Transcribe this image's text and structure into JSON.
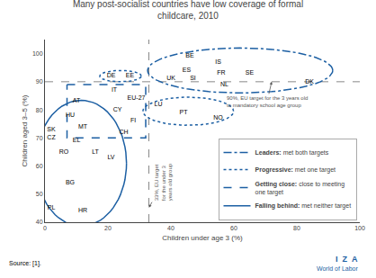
{
  "chart_data": {
    "type": "scatter",
    "title": "Many post-socialist countries have low coverage of formal\nchildcare, 2010",
    "xlabel": "Children under age 3 (%)",
    "ylabel": "Children aged 3–5 (%)",
    "xlim": [
      0,
      100
    ],
    "ylim": [
      40,
      105
    ],
    "xticks": [
      0,
      20,
      40,
      60,
      80,
      100
    ],
    "yticks": [
      40,
      50,
      60,
      70,
      80,
      90,
      100
    ],
    "grid": false,
    "legend": "lower right",
    "color": "#1c5fa3",
    "hline": {
      "value": 90,
      "label": "90%, EU target for the 3 years old\nto mandatory school age group"
    },
    "vline": {
      "value": 33,
      "label": "33%, EU target\nfor the under 3\nyears old group"
    },
    "source": "Source: [1].",
    "annotations": [
      "I  Z  A",
      "World of Labor"
    ],
    "series": [
      {
        "name": "Leaders: met both targets",
        "line_style": "dashdot",
        "labels": [
          "BE",
          "IS",
          "ES",
          "FR",
          "UK",
          "SI",
          "SE",
          "NL",
          "DK"
        ],
        "x": [
          46,
          55,
          45,
          56,
          40,
          47,
          65,
          57,
          84
        ],
        "y": [
          99,
          97,
          94,
          93,
          91,
          91,
          93,
          89,
          90
        ]
      },
      {
        "name": "Progressive: met one target",
        "line_style": "dotted",
        "labels": [
          "DE",
          "EE"
        ],
        "x": [
          21,
          27
        ],
        "y": [
          92,
          92
        ]
      },
      {
        "name": "Getting close: close to meeting\none target",
        "line_style": "dashed",
        "labels": [
          "IT",
          "EU-27",
          "CY",
          "FI",
          "CH",
          "AT"
        ],
        "x": [
          22,
          29,
          23,
          28,
          25,
          10
        ],
        "y": [
          87,
          84,
          80,
          76,
          72,
          83
        ]
      },
      {
        "name": "Falling behind: met neither target",
        "line_style": "solid",
        "labels": [
          "HU",
          "SK",
          "MT",
          "CZ",
          "EL",
          "RO",
          "LT",
          "LV",
          "BG",
          "PL",
          "HR"
        ],
        "x": [
          8,
          2,
          12,
          2,
          10,
          6,
          16,
          21,
          8,
          2,
          12
        ],
        "y": [
          78,
          73,
          74,
          70,
          69,
          65,
          65,
          63,
          54,
          45,
          44
        ]
      },
      {
        "name": "Progressive: met one target",
        "line_style": "dotted",
        "labels": [
          "LU",
          "PT",
          "NO"
        ],
        "x": [
          36,
          44,
          55
        ],
        "y": [
          82,
          79,
          77
        ]
      }
    ]
  }
}
